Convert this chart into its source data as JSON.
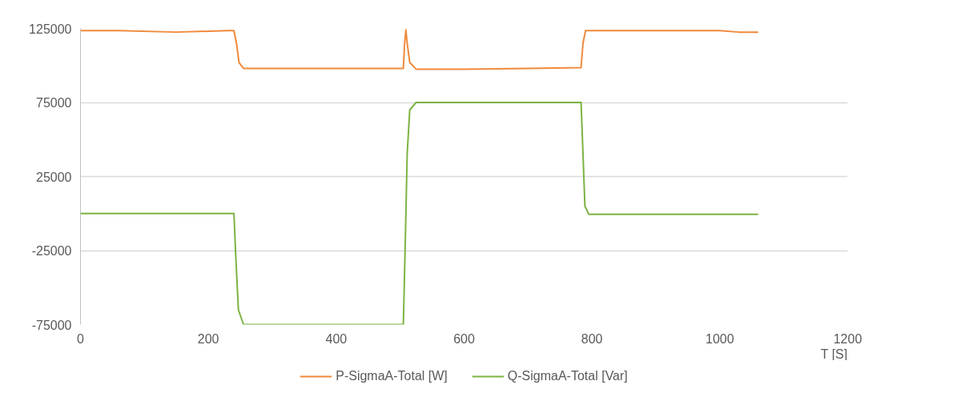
{
  "chart_data": {
    "type": "line",
    "xlabel": "T [S]",
    "xlim": [
      0,
      1200
    ],
    "xticks": [
      0,
      200,
      400,
      600,
      800,
      1000,
      1200
    ],
    "ylim": [
      -75000,
      125000
    ],
    "yticks": [
      -75000,
      -25000,
      25000,
      75000,
      125000
    ],
    "grid": "y",
    "legend": "bottom",
    "series": [
      {
        "name": "P-SigmaA-Total [W]",
        "color": "#f08a3c",
        "x": [
          0,
          60,
          150,
          230,
          240,
          244,
          248,
          255,
          400,
          505,
          507,
          509,
          511,
          515,
          525,
          600,
          700,
          783,
          786,
          790,
          900,
          1000,
          1030,
          1060
        ],
        "values": [
          123500,
          123500,
          122500,
          123500,
          123500,
          115000,
          102000,
          98000,
          98000,
          98000,
          115000,
          124000,
          115000,
          102000,
          97500,
          97500,
          98000,
          98500,
          115000,
          123500,
          123500,
          123500,
          122500,
          122500
        ]
      },
      {
        "name": "Q-SigmaA-Total [Var]",
        "color": "#7cb342",
        "x": [
          0,
          240,
          243,
          247,
          255,
          505,
          508,
          511,
          515,
          525,
          783,
          786,
          789,
          795,
          1000,
          1060
        ],
        "values": [
          0,
          0,
          -30000,
          -65000,
          -75000,
          -75000,
          -20000,
          40000,
          70000,
          75000,
          75000,
          40000,
          5000,
          -500,
          -500,
          -500
        ]
      }
    ]
  }
}
